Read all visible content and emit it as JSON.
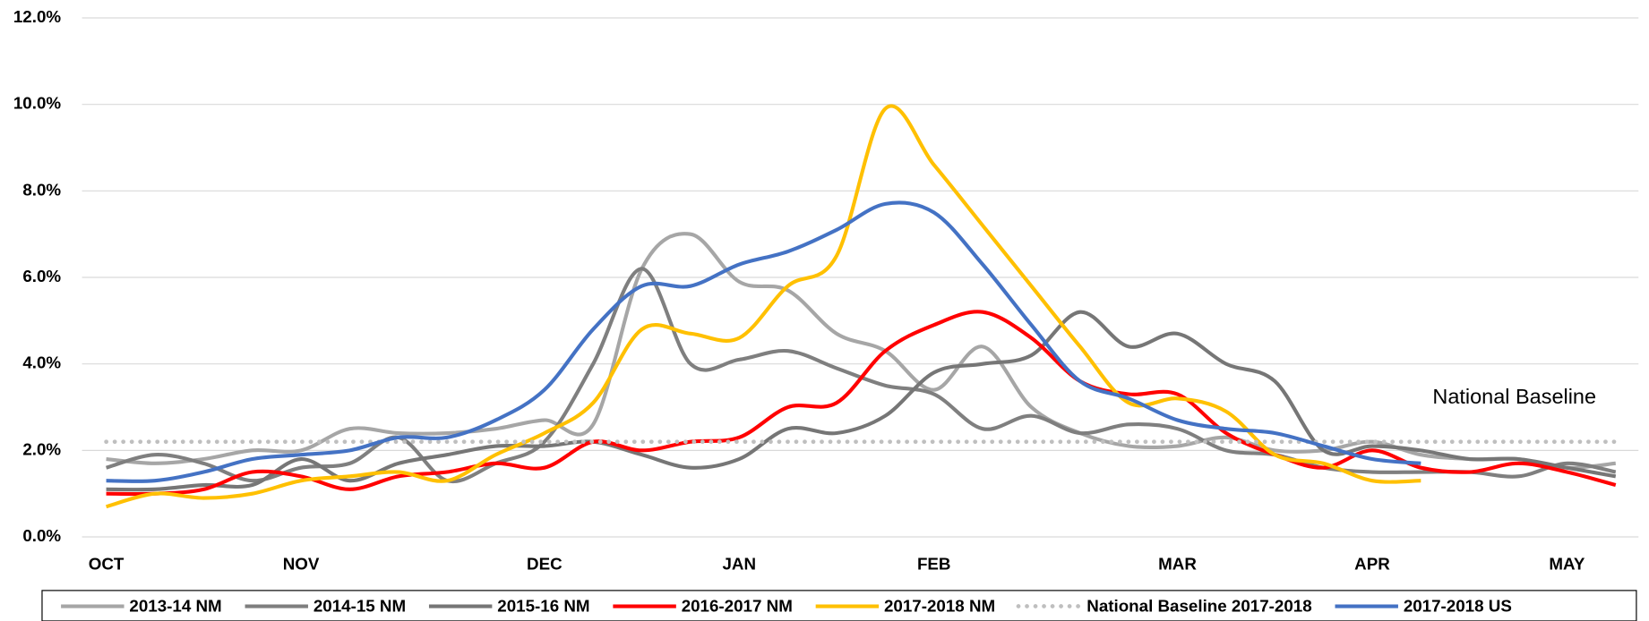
{
  "chart_data": {
    "type": "line",
    "categories": [
      "OCT",
      null,
      null,
      null,
      "NOV",
      null,
      null,
      null,
      null,
      "DEC",
      null,
      null,
      null,
      "JAN",
      null,
      null,
      null,
      "FEB",
      null,
      null,
      null,
      null,
      "MAR",
      null,
      null,
      null,
      "APR",
      null,
      null,
      null,
      "MAY",
      null
    ],
    "ylim": [
      0,
      12
    ],
    "yticks": [
      {
        "value": 0,
        "label": "0.0%"
      },
      {
        "value": 2,
        "label": "2.0%"
      },
      {
        "value": 4,
        "label": "4.0%"
      },
      {
        "value": 6,
        "label": "6.0%"
      },
      {
        "value": 8,
        "label": "8.0%"
      },
      {
        "value": 10,
        "label": "10.0%"
      },
      {
        "value": 12,
        "label": "12.0%"
      }
    ],
    "grid": true,
    "legend": "bottom",
    "annotation": "National Baseline",
    "series": [
      {
        "name": "2013-14 NM",
        "color": "#a6a6a6",
        "values": [
          1.8,
          1.7,
          1.8,
          2.0,
          2.0,
          2.5,
          2.4,
          2.4,
          2.5,
          2.7,
          2.6,
          6.2,
          7.0,
          5.9,
          5.7,
          4.7,
          4.3,
          3.4,
          4.4,
          3.0,
          2.4,
          2.1,
          2.1,
          2.3,
          2.0,
          2.0,
          2.2,
          1.9,
          1.8,
          1.8,
          1.6,
          1.7
        ]
      },
      {
        "name": "2014-15 NM",
        "color": "#7f7f7f",
        "values": [
          1.6,
          1.9,
          1.7,
          1.3,
          1.6,
          1.7,
          2.3,
          1.3,
          1.7,
          2.2,
          4.0,
          6.2,
          4.0,
          4.1,
          4.3,
          3.9,
          3.5,
          3.3,
          2.5,
          2.8,
          2.4,
          2.6,
          2.5,
          2.0,
          1.9,
          1.6,
          1.5,
          1.5,
          1.5,
          1.4,
          1.7,
          1.5
        ]
      },
      {
        "name": "2015-16 NM",
        "color": "#767676",
        "values": [
          1.1,
          1.1,
          1.2,
          1.2,
          1.8,
          1.3,
          1.7,
          1.9,
          2.1,
          2.1,
          2.2,
          1.9,
          1.6,
          1.8,
          2.5,
          2.4,
          2.8,
          3.8,
          4.0,
          4.2,
          5.2,
          4.4,
          4.7,
          4.0,
          3.6,
          2.0,
          2.1,
          2.0,
          1.8,
          1.8,
          1.6,
          1.4
        ]
      },
      {
        "name": "2016-2017 NM",
        "color": "#ff0000",
        "values": [
          1.0,
          1.0,
          1.1,
          1.5,
          1.4,
          1.1,
          1.4,
          1.5,
          1.7,
          1.6,
          2.2,
          2.0,
          2.2,
          2.3,
          3.0,
          3.1,
          4.3,
          4.9,
          5.2,
          4.6,
          3.6,
          3.3,
          3.3,
          2.4,
          1.9,
          1.6,
          2.0,
          1.6,
          1.5,
          1.7,
          1.5,
          1.2
        ]
      },
      {
        "name": "2017-2018 NM",
        "color": "#ffc000",
        "values": [
          0.7,
          1.0,
          0.9,
          1.0,
          1.3,
          1.4,
          1.5,
          1.3,
          1.9,
          2.4,
          3.1,
          4.8,
          4.7,
          4.6,
          5.8,
          6.5,
          9.9,
          8.6,
          7.2,
          5.8,
          4.4,
          3.1,
          3.2,
          2.9,
          1.9,
          1.7,
          1.3,
          1.3,
          null,
          null,
          null,
          null
        ]
      },
      {
        "name": "National Baseline 2017-2018",
        "color": "#bfbfbf",
        "dotted": true,
        "values": [
          2.2,
          2.2,
          2.2,
          2.2,
          2.2,
          2.2,
          2.2,
          2.2,
          2.2,
          2.2,
          2.2,
          2.2,
          2.2,
          2.2,
          2.2,
          2.2,
          2.2,
          2.2,
          2.2,
          2.2,
          2.2,
          2.2,
          2.2,
          2.2,
          2.2,
          2.2,
          2.2,
          2.2,
          2.2,
          2.2,
          2.2,
          2.2
        ]
      },
      {
        "name": "2017-2018 US",
        "color": "#4472c4",
        "values": [
          1.3,
          1.3,
          1.5,
          1.8,
          1.9,
          2.0,
          2.3,
          2.3,
          2.7,
          3.4,
          4.8,
          5.8,
          5.8,
          6.3,
          6.6,
          7.1,
          7.7,
          7.5,
          6.3,
          4.9,
          3.6,
          3.2,
          2.7,
          2.5,
          2.4,
          2.1,
          1.8,
          1.7,
          null,
          null,
          null,
          null
        ]
      }
    ]
  }
}
